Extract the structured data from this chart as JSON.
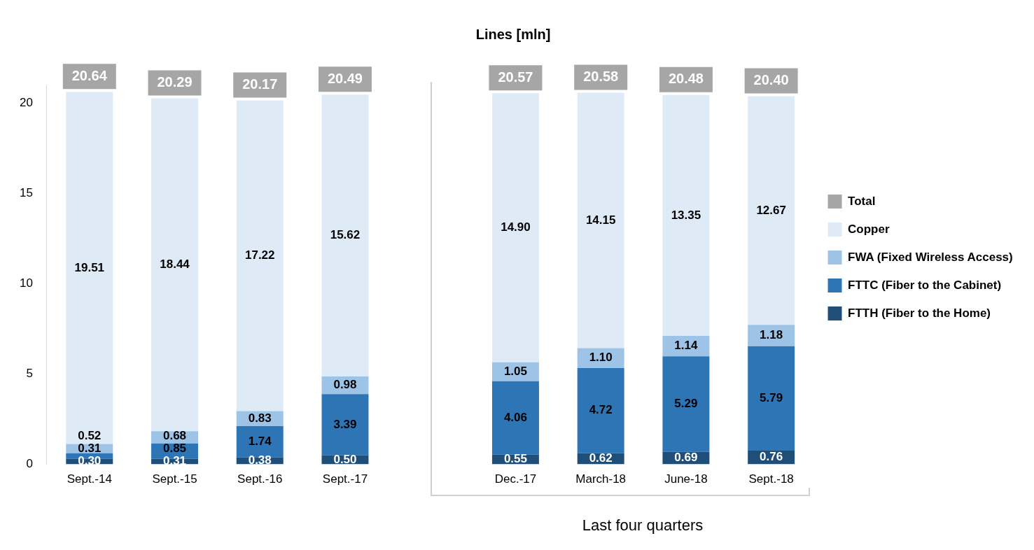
{
  "chart_data": {
    "type": "bar",
    "title": "Lines [mln]",
    "stacked": true,
    "legend": "right",
    "categories": [
      "Sept.-14",
      "Sept.-15",
      "Sept.-16",
      "Sept.-17",
      null,
      "Dec.-17",
      "March-18",
      "June-18",
      "Sept.-18"
    ],
    "series": [
      {
        "name": "FTTH (Fiber to the Home)",
        "color": "#1f4e79",
        "values": [
          0.3,
          0.31,
          0.38,
          0.5,
          null,
          0.55,
          0.62,
          0.69,
          0.76
        ],
        "value_labels": [
          "0.30",
          "0.31",
          "0.38",
          "0.50",
          null,
          "0.55",
          "0.62",
          "0.69",
          "0.76"
        ]
      },
      {
        "name": "FTTC (Fiber to the Cabinet)",
        "color": "#2e75b6",
        "values": [
          0.31,
          0.85,
          1.74,
          3.39,
          null,
          4.06,
          4.72,
          5.29,
          5.79
        ],
        "value_labels": [
          "0.31",
          "0.85",
          "1.74",
          "3.39",
          null,
          "4.06",
          "4.72",
          "5.29",
          "5.79"
        ]
      },
      {
        "name": "FWA (Fixed Wireless Access)",
        "color": "#9dc3e6",
        "values": [
          0.52,
          0.68,
          0.83,
          0.98,
          null,
          1.05,
          1.1,
          1.14,
          1.18
        ],
        "value_labels": [
          "0.52",
          "0.68",
          "0.83",
          "0.98",
          null,
          "1.05",
          "1.10",
          "1.14",
          "1.18"
        ]
      },
      {
        "name": "Copper",
        "color": "#deebf7",
        "values": [
          19.51,
          18.44,
          17.22,
          15.62,
          null,
          14.9,
          14.15,
          13.35,
          12.67
        ],
        "value_labels": [
          "19.51",
          "18.44",
          "17.22",
          "15.62",
          null,
          "14.90",
          "14.15",
          "13.35",
          "12.67"
        ]
      },
      {
        "name": "Total",
        "color": "#a6a6a6",
        "values": [
          null,
          null,
          null,
          null,
          null,
          null,
          null,
          null,
          null
        ]
      }
    ],
    "totals": [
      "20.64",
      "20.29",
      "20.17",
      "20.49",
      null,
      "20.57",
      "20.58",
      "20.48",
      "20.40"
    ],
    "ylim": [
      0,
      21
    ],
    "yticks": [
      0,
      5,
      10,
      15,
      20
    ],
    "annotations": [
      "Last four quarters"
    ]
  }
}
